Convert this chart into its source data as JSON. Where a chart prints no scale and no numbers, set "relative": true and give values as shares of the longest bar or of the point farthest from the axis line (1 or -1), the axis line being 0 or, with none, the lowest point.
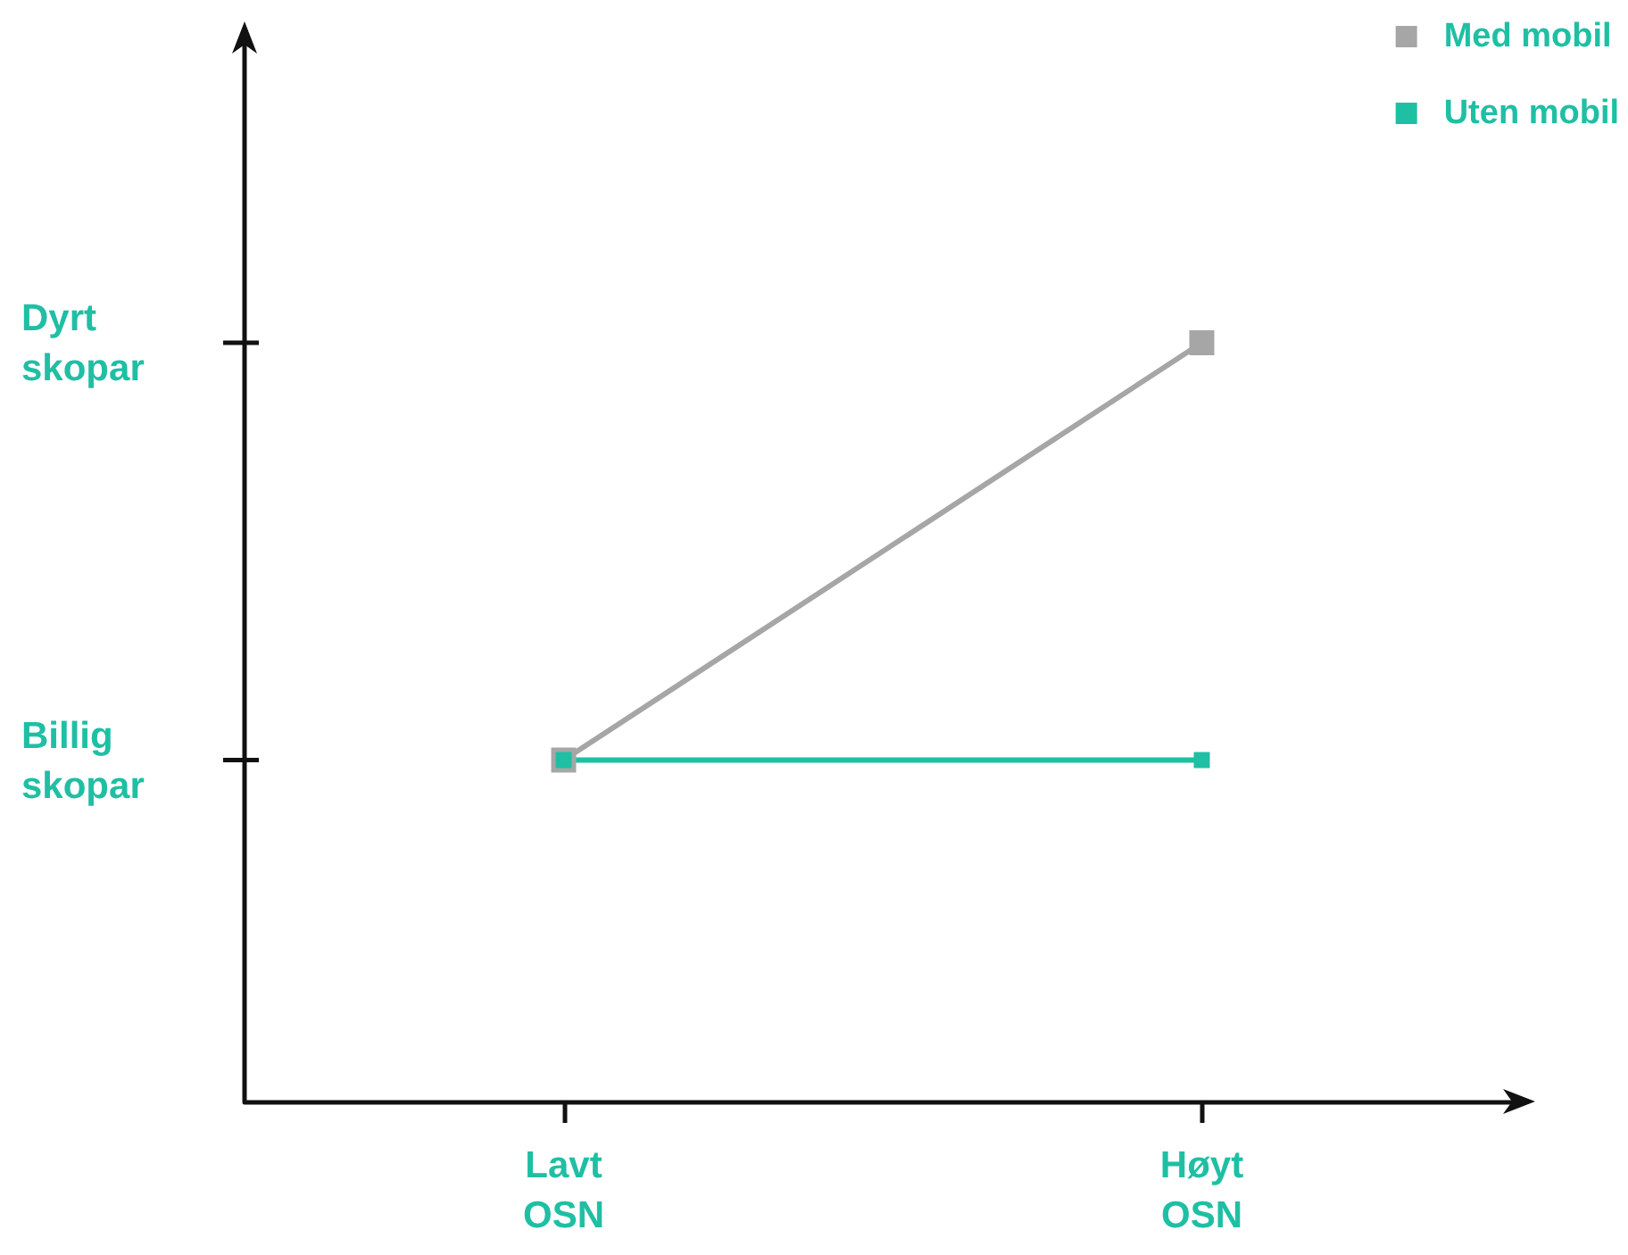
{
  "chart_data": {
    "type": "line",
    "relative": true,
    "categories": [
      "Lavt\nOSN",
      "Høyt\nOSN"
    ],
    "series": [
      {
        "name": "Med mobil",
        "color": "#a6a6a6",
        "values": [
          0.45,
          1
        ]
      },
      {
        "name": "Uten mobil",
        "color": "#1fbfa4",
        "values": [
          0.45,
          0.45
        ]
      }
    ],
    "annotations": [
      "Dyrt\nskopar",
      "Billig\nskopar"
    ],
    "grid": false,
    "legend": "top right",
    "marker": "square",
    "line_style": "solid"
  }
}
